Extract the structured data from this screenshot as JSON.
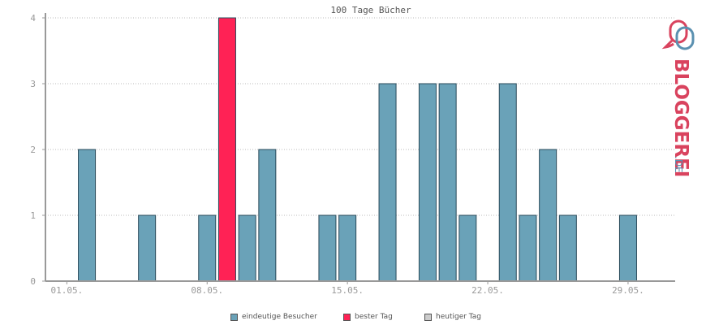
{
  "chart_data": {
    "type": "bar",
    "title": "100 Tage Bücher",
    "x_tick_labels": [
      "01.05.",
      "08.05.",
      "15.05.",
      "22.05.",
      "29.05."
    ],
    "x_tick_days": [
      1,
      8,
      15,
      22,
      29
    ],
    "y_ticks": [
      "0",
      "1",
      "2",
      "3",
      "4"
    ],
    "ylim": [
      0,
      4
    ],
    "xlim_days": [
      0,
      31
    ],
    "grid": true,
    "series": [
      {
        "name": "eindeutige Besucher",
        "color": "#6aa2b8",
        "points": [
          {
            "day": 2,
            "value": 2
          },
          {
            "day": 5,
            "value": 1
          },
          {
            "day": 8,
            "value": 1
          },
          {
            "day": 10,
            "value": 1
          },
          {
            "day": 11,
            "value": 2
          },
          {
            "day": 14,
            "value": 1
          },
          {
            "day": 15,
            "value": 1
          },
          {
            "day": 17,
            "value": 3
          },
          {
            "day": 19,
            "value": 3
          },
          {
            "day": 20,
            "value": 3
          },
          {
            "day": 21,
            "value": 1
          },
          {
            "day": 23,
            "value": 3
          },
          {
            "day": 24,
            "value": 1
          },
          {
            "day": 25,
            "value": 2
          },
          {
            "day": 26,
            "value": 1
          },
          {
            "day": 29,
            "value": 1
          }
        ]
      },
      {
        "name": "bester Tag",
        "color": "#ff2255",
        "points": [
          {
            "day": 9,
            "value": 4
          }
        ]
      },
      {
        "name": "heutiger Tag",
        "color": "#cccccc",
        "points": []
      }
    ],
    "legend_position": "bottom-center"
  },
  "legend": [
    {
      "label": "eindeutige Besucher",
      "color": "#6aa2b8"
    },
    {
      "label": "bester Tag",
      "color": "#ff2255"
    },
    {
      "label": "heutiger Tag",
      "color": "#cccccc"
    }
  ],
  "logo": {
    "text": "BLOGGEREI",
    "suffix": ".DE",
    "icon": "bloggerei-speech-bubble-logo"
  }
}
